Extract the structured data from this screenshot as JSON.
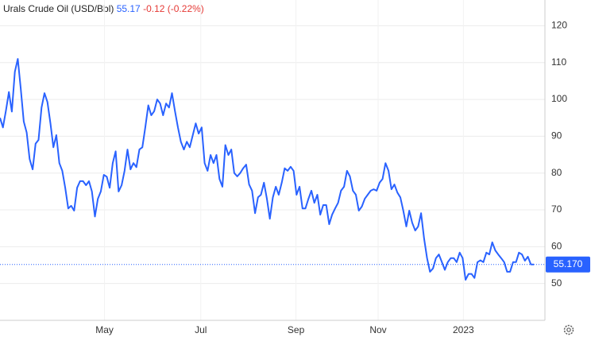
{
  "header": {
    "title": "Urals Crude Oil (USD/Bbl)",
    "price": "55.17",
    "change": "-0.12 (-0.22%)"
  },
  "chart_data": {
    "type": "line",
    "color": "#2962ff",
    "grid": true,
    "values": [
      95,
      92.4,
      97,
      102,
      96.7,
      107.5,
      111,
      103,
      94,
      91,
      83.8,
      81,
      88,
      89,
      97.8,
      101.7,
      99.3,
      93.5,
      87,
      90.3,
      82.7,
      80.6,
      76,
      70.4,
      71.1,
      69.8,
      76,
      77.8,
      77.8,
      76.7,
      77.8,
      75,
      68.2,
      73,
      75,
      79.5,
      79,
      76,
      82.7,
      85.9,
      75,
      76.7,
      80.6,
      86.4,
      81,
      82.7,
      81.6,
      86.4,
      87,
      92.4,
      98.4,
      95.7,
      96.8,
      100,
      98.9,
      95.7,
      98.9,
      97.8,
      101.7,
      96.8,
      92.4,
      88.5,
      86.4,
      88.5,
      87,
      90.3,
      93.5,
      90.7,
      92.4,
      82.7,
      80.6,
      84.9,
      82.7,
      84.9,
      78.4,
      76.3,
      87.6,
      84.9,
      86.4,
      80,
      79.1,
      80,
      81.3,
      82.3,
      76.9,
      75.2,
      69.1,
      73.4,
      74.1,
      77.4,
      73,
      67.6,
      73.4,
      76.3,
      74.1,
      77.4,
      81.3,
      80.6,
      81.7,
      80.6,
      74.1,
      76.3,
      70.4,
      70.4,
      73,
      75.2,
      71.9,
      74.1,
      68.7,
      71.3,
      71.3,
      66.1,
      68.7,
      70.4,
      71.9,
      75.2,
      76.3,
      80.6,
      79.1,
      75.2,
      74.1,
      69.8,
      70.9,
      73,
      74.1,
      75.2,
      75.6,
      75.2,
      77.4,
      78.4,
      82.7,
      80.6,
      75.6,
      76.9,
      74.7,
      73.4,
      69.8,
      65.5,
      69.8,
      66.5,
      64.4,
      65.5,
      69.1,
      62.2,
      56.9,
      53.2,
      54.1,
      56.9,
      57.9,
      55.8,
      53.7,
      55.8,
      56.9,
      56.9,
      55.8,
      58.4,
      56.9,
      51,
      52.6,
      52.6,
      51.5,
      55.8,
      56.3,
      55.8,
      58.4,
      57.9,
      61.2,
      59,
      57.9,
      56.9,
      55.8,
      53.2,
      53.2,
      55.8,
      55.8,
      58.4,
      57.9,
      56.2,
      57.3,
      55.2,
      55.17
    ],
    "ylim": [
      40,
      127
    ],
    "yticks": [
      50,
      60,
      70,
      80,
      90,
      100,
      110,
      120
    ],
    "xticks": [
      {
        "value": 35.25,
        "label": "May"
      },
      {
        "value": 67.7,
        "label": "Jul"
      },
      {
        "value": 99.8,
        "label": "Sep"
      },
      {
        "value": 127.5,
        "label": "Nov"
      },
      {
        "value": 156.25,
        "label": "2023"
      }
    ],
    "price_line": {
      "value": 55.17,
      "label": "55.170"
    }
  }
}
